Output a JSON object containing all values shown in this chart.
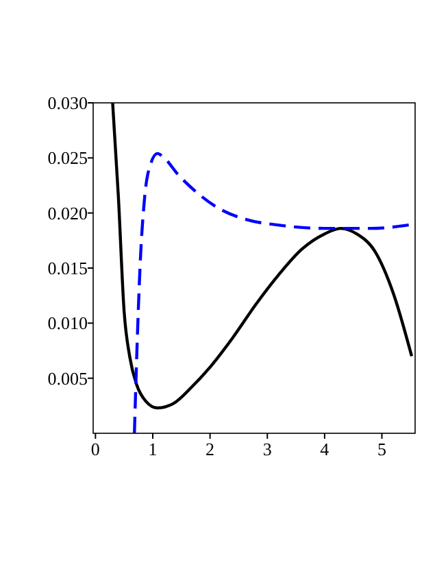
{
  "chart_data": {
    "type": "line",
    "xlim": [
      -0.04,
      5.58
    ],
    "ylim": [
      0,
      0.03
    ],
    "xticks": [
      0,
      1,
      2,
      3,
      4,
      5
    ],
    "yticks": [
      {
        "value": 0.005,
        "label": "0.005"
      },
      {
        "value": 0.01,
        "label": "0.010"
      },
      {
        "value": 0.015,
        "label": "0.015"
      },
      {
        "value": 0.02,
        "label": "0.020"
      },
      {
        "value": 0.025,
        "label": "0.025"
      },
      {
        "value": 0.03,
        "label": "0.030"
      }
    ],
    "series": [
      {
        "color": "#000000",
        "line_style": "solid",
        "x": [
          0.3,
          0.4,
          0.5,
          0.6,
          0.72,
          0.88,
          1.08,
          1.36,
          1.68,
          2.0,
          2.4,
          2.8,
          3.2,
          3.6,
          4.0,
          4.28,
          4.56,
          4.88,
          5.2,
          5.52
        ],
        "values": [
          0.03,
          0.0215,
          0.0111,
          0.0069,
          0.0044,
          0.0029,
          0.0023,
          0.0027,
          0.0042,
          0.006,
          0.0087,
          0.0117,
          0.0144,
          0.0167,
          0.0181,
          0.0186,
          0.0181,
          0.0165,
          0.0127,
          0.007
        ]
      },
      {
        "color": "#0000ff",
        "line_style": "dashed",
        "x": [
          0.68,
          0.72,
          0.78,
          0.86,
          0.96,
          1.08,
          1.2,
          1.44,
          1.76,
          2.16,
          2.64,
          3.2,
          4.0,
          4.8,
          5.58
        ],
        "values": [
          0,
          0.0069,
          0.0153,
          0.0215,
          0.0244,
          0.0254,
          0.025,
          0.0235,
          0.0219,
          0.0204,
          0.0194,
          0.0189,
          0.0186,
          0.0186,
          0.019
        ]
      }
    ]
  }
}
